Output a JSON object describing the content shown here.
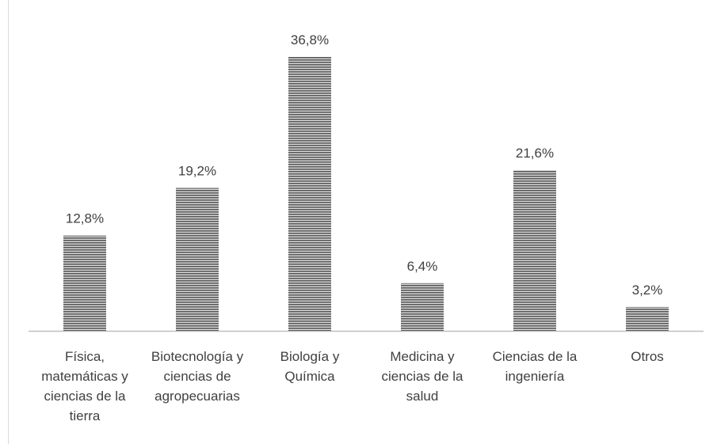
{
  "chart_data": {
    "type": "bar",
    "categories": [
      "Física, matemáticas y ciencias de la tierra",
      "Biotecnología y ciencias de agropecuarias",
      "Biología y Química",
      "Medicina y ciencias de la salud",
      "Ciencias de la ingeniería",
      "Otros"
    ],
    "values": [
      12.8,
      19.2,
      36.8,
      6.4,
      21.6,
      3.2
    ],
    "value_labels": [
      "12,8%",
      "19,2%",
      "36,8%",
      "6,4%",
      "21,6%",
      "3,2%"
    ],
    "color": "#595959"
  }
}
